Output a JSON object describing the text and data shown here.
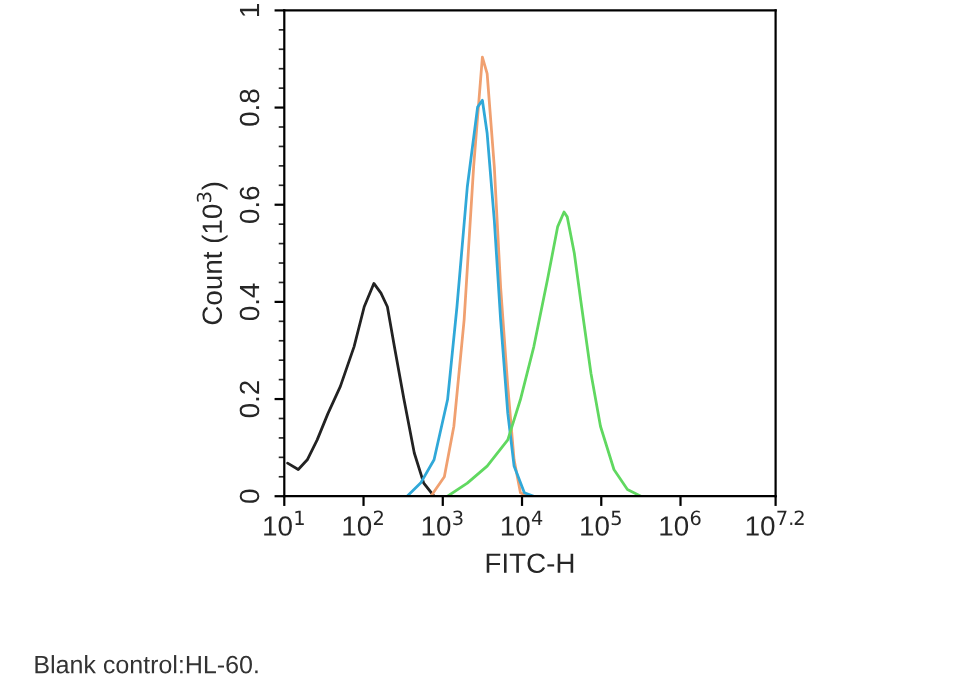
{
  "chart_data": {
    "type": "line",
    "xlabel": "FITC-H",
    "ylabel": "Count (10$^{3}$)",
    "annotations": [
      "Blank control:HL-60."
    ],
    "log": "x",
    "xlim": [
      10,
      15848932
    ],
    "ylim": [
      0,
      1
    ],
    "xticks": [
      {
        "value": 10,
        "label": "10$^{1}$"
      },
      {
        "value": 100,
        "label": "10$^{2}$"
      },
      {
        "value": 1000,
        "label": "10$^{3}$"
      },
      {
        "value": 10000,
        "label": "10$^{4}$"
      },
      {
        "value": 100000,
        "label": "10$^{5}$"
      },
      {
        "value": 1000000,
        "label": "10$^{6}$"
      },
      {
        "value": 15848932,
        "label": "10$^{7.2}$"
      }
    ],
    "yticks": [
      0,
      0.2,
      0.4,
      0.6,
      0.8,
      1
    ],
    "grid": false,
    "legend": false,
    "marker": "none",
    "line_style": "solid",
    "series": [
      {
        "color": "#222222",
        "x": [
          11,
          15,
          19.5,
          26,
          35.5,
          51,
          76,
          102,
          135,
          166,
          200,
          245,
          324,
          437,
          575,
          776
        ],
        "values": [
          0.068,
          0.055,
          0.075,
          0.116,
          0.17,
          0.226,
          0.308,
          0.39,
          0.438,
          0.418,
          0.39,
          0.308,
          0.199,
          0.089,
          0.027,
          0
        ]
      },
      {
        "color": "#f0a070",
        "x": [
          708,
          1047,
          1380,
          1860,
          2450,
          3160,
          3630,
          4470,
          5370,
          6610,
          7940,
          9550,
          11750
        ],
        "values": [
          0,
          0.04,
          0.144,
          0.363,
          0.678,
          0.904,
          0.87,
          0.678,
          0.43,
          0.226,
          0.075,
          0.007,
          0
        ]
      },
      {
        "color": "#30a8d8",
        "x": [
          355,
          525,
          776,
          1150,
          1510,
          2040,
          2750,
          3160,
          3630,
          4470,
          5370,
          6610,
          7940,
          10700,
          14100
        ],
        "values": [
          0,
          0.027,
          0.075,
          0.199,
          0.39,
          0.637,
          0.801,
          0.815,
          0.747,
          0.568,
          0.363,
          0.171,
          0.062,
          0.007,
          0
        ]
      },
      {
        "color": "#60d860",
        "x": [
          1150,
          2040,
          3630,
          6610,
          9550,
          14100,
          20900,
          28200,
          33900,
          37200,
          45700,
          55000,
          74100,
          97700,
          144500,
          213800,
          316000
        ],
        "values": [
          0,
          0.027,
          0.062,
          0.116,
          0.199,
          0.308,
          0.445,
          0.555,
          0.585,
          0.575,
          0.5,
          0.404,
          0.253,
          0.144,
          0.055,
          0.014,
          0
        ]
      }
    ]
  }
}
